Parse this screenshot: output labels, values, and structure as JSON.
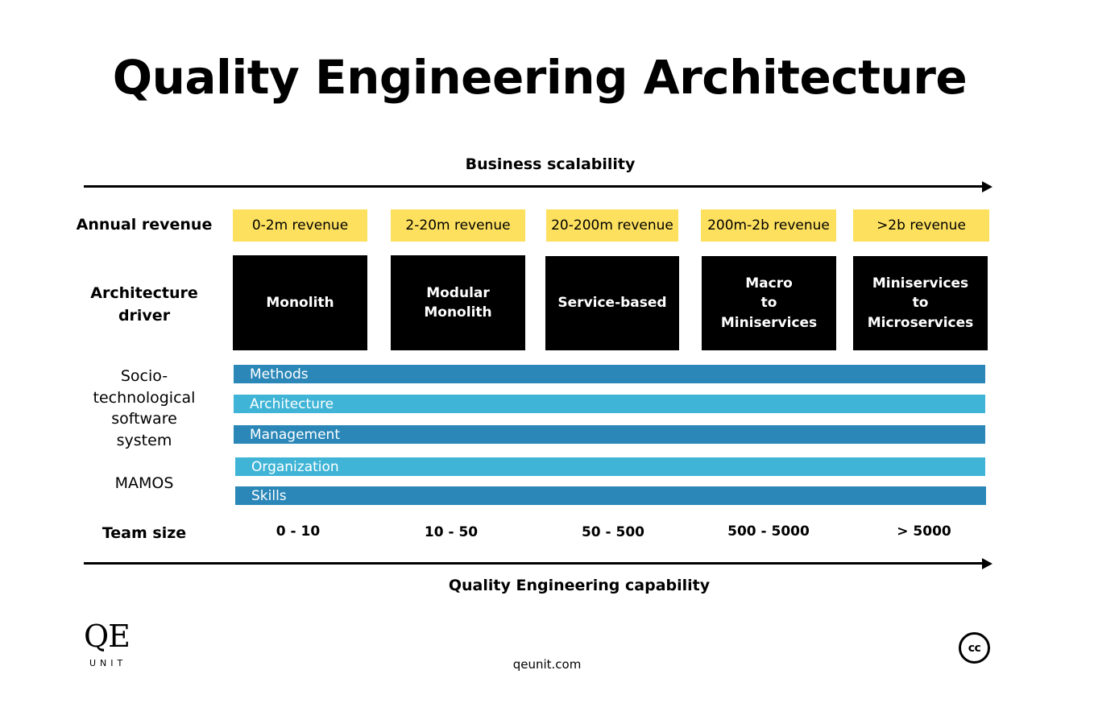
{
  "title": "Quality Engineering Architecture",
  "top_axis": {
    "label": "Business scalability"
  },
  "bottom_axis": {
    "label": "Quality Engineering capability"
  },
  "rows": {
    "annual_revenue": "Annual revenue",
    "architecture_driver": "Architecture\ndriver",
    "socio_technical": "Socio-\ntechnological\nsoftware\nsystem",
    "mamos": "MAMOS",
    "team_size": "Team size"
  },
  "revenue": [
    "0-2m revenue",
    "2-20m revenue",
    "20-200m revenue",
    "200m-2b revenue",
    ">2b revenue"
  ],
  "drivers": [
    "Monolith",
    "Modular\nMonolith",
    "Service-based",
    "Macro\nto\nMiniservices",
    "Miniservices\nto\nMicroservices"
  ],
  "mamos_bars": [
    "Methods",
    "Architecture",
    "Management",
    "Organization",
    "Skills"
  ],
  "colors": {
    "revenue": "#fde05e",
    "bar_dark": "#2a87b8",
    "bar_light": "#3fb4d6",
    "driver": "#000000"
  },
  "team_sizes": [
    "0 - 10",
    "10 - 50",
    "50 - 500",
    "500 - 5000",
    "> 5000"
  ],
  "footer": {
    "logo_main": "QE",
    "logo_sub": "UNIT",
    "url": "qeunit.com",
    "license_icon": "creative-commons-icon",
    "license_text": "cc"
  }
}
